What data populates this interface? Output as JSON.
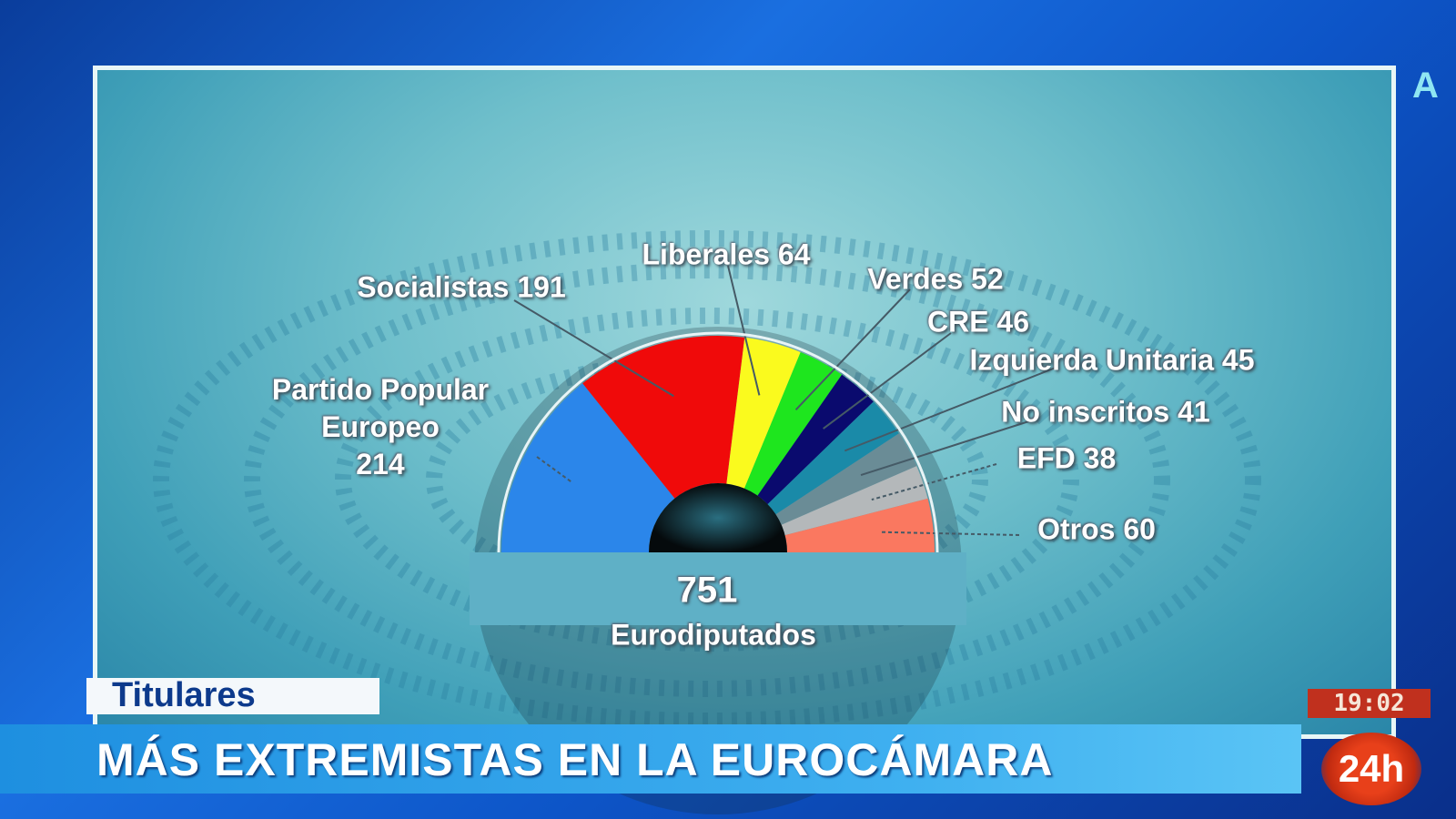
{
  "channel_corner_letter": "A",
  "chart_data": {
    "type": "pie",
    "variant": "semicircle-donut",
    "total_value": "751",
    "total_label": "Eurodiputados",
    "slices": [
      {
        "name": "Partido Popular Europeo",
        "label_lines": [
          "Partido Popular",
          "Europeo",
          "214"
        ],
        "value": 214,
        "color": "#2b86ea"
      },
      {
        "name": "Socialistas",
        "label": "Socialistas 191",
        "value": 191,
        "color": "#f00a0a"
      },
      {
        "name": "Liberales",
        "label": "Liberales 64",
        "value": 64,
        "color": "#fafa1e"
      },
      {
        "name": "Verdes",
        "label": "Verdes 52",
        "value": 52,
        "color": "#1ee61e"
      },
      {
        "name": "CRE",
        "label": "CRE 46",
        "value": 46,
        "color": "#0a0a6e"
      },
      {
        "name": "Izquierda Unitaria",
        "label": "Izquierda Unitaria 45",
        "value": 45,
        "color": "#1a8aa8"
      },
      {
        "name": "No inscritos",
        "label": "No inscritos 41",
        "value": 41,
        "color": "#6a8c96"
      },
      {
        "name": "EFD",
        "label": "EFD 38",
        "value": 38,
        "color": "#b4b8ba"
      },
      {
        "name": "Otros",
        "label": "Otros 60",
        "value": 60,
        "color": "#fa7860"
      }
    ]
  },
  "lower_third": {
    "section": "Titulares",
    "headline": "MÁS EXTREMISTAS EN LA EUROCÁMARA",
    "clock": "19:02",
    "logo": "24h"
  }
}
